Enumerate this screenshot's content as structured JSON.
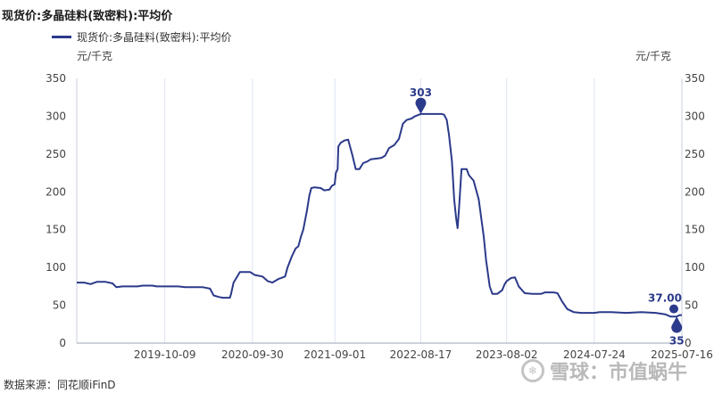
{
  "header": {
    "title": "现货价:多晶硅料(致密料):平均价",
    "legend_label": "现货价:多晶硅料(致密料):平均价",
    "unit_left": "元/千克",
    "unit_right": "元/千克"
  },
  "footer": {
    "source": "数据来源：同花顺iFinD",
    "watermark_text": "雪球：市值蜗牛"
  },
  "chart_data": {
    "type": "line",
    "series": [
      {
        "name": "现货价:多晶硅料(致密料):平均价",
        "color": "#2b3a8a",
        "points": [
          [
            "2018-10-15",
            80
          ],
          [
            "2018-11-15",
            80
          ],
          [
            "2018-12-10",
            78
          ],
          [
            "2019-01-05",
            81
          ],
          [
            "2019-02-10",
            81
          ],
          [
            "2019-03-10",
            79
          ],
          [
            "2019-03-25",
            74
          ],
          [
            "2019-04-20",
            75
          ],
          [
            "2019-06-20",
            75
          ],
          [
            "2019-07-10",
            76
          ],
          [
            "2019-08-20",
            76
          ],
          [
            "2019-09-05",
            75
          ],
          [
            "2019-10-09",
            75
          ],
          [
            "2019-12-01",
            75
          ],
          [
            "2020-01-01",
            74
          ],
          [
            "2020-03-10",
            74
          ],
          [
            "2020-04-10",
            72
          ],
          [
            "2020-04-25",
            63
          ],
          [
            "2020-05-15",
            61
          ],
          [
            "2020-06-01",
            60
          ],
          [
            "2020-06-30",
            60
          ],
          [
            "2020-07-05",
            65
          ],
          [
            "2020-07-15",
            80
          ],
          [
            "2020-08-10",
            94
          ],
          [
            "2020-09-20",
            94
          ],
          [
            "2020-10-10",
            90
          ],
          [
            "2020-11-10",
            88
          ],
          [
            "2020-12-01",
            82
          ],
          [
            "2020-12-20",
            80
          ],
          [
            "2021-01-15",
            85
          ],
          [
            "2021-02-10",
            88
          ],
          [
            "2021-02-20",
            100
          ],
          [
            "2021-03-10",
            115
          ],
          [
            "2021-03-25",
            125
          ],
          [
            "2021-04-05",
            128
          ],
          [
            "2021-04-15",
            140
          ],
          [
            "2021-04-25",
            150
          ],
          [
            "2021-05-10",
            175
          ],
          [
            "2021-05-20",
            195
          ],
          [
            "2021-05-28",
            205
          ],
          [
            "2021-06-10",
            206
          ],
          [
            "2021-07-05",
            205
          ],
          [
            "2021-07-20",
            202
          ],
          [
            "2021-08-10",
            203
          ],
          [
            "2021-08-20",
            208
          ],
          [
            "2021-08-31",
            210
          ],
          [
            "2021-09-05",
            225
          ],
          [
            "2021-09-12",
            230
          ],
          [
            "2021-09-15",
            260
          ],
          [
            "2021-09-25",
            265
          ],
          [
            "2021-10-10",
            268
          ],
          [
            "2021-10-25",
            269
          ],
          [
            "2021-11-10",
            250
          ],
          [
            "2021-11-25",
            230
          ],
          [
            "2021-12-10",
            230
          ],
          [
            "2021-12-25",
            238
          ],
          [
            "2022-01-10",
            240
          ],
          [
            "2022-01-25",
            243
          ],
          [
            "2022-02-20",
            244
          ],
          [
            "2022-03-10",
            245
          ],
          [
            "2022-03-25",
            248
          ],
          [
            "2022-04-10",
            258
          ],
          [
            "2022-05-01",
            262
          ],
          [
            "2022-05-20",
            270
          ],
          [
            "2022-06-05",
            290
          ],
          [
            "2022-06-20",
            295
          ],
          [
            "2022-07-10",
            297
          ],
          [
            "2022-07-25",
            300
          ],
          [
            "2022-08-10",
            302
          ],
          [
            "2022-08-17",
            303
          ],
          [
            "2022-08-25",
            303
          ],
          [
            "2022-09-20",
            303
          ],
          [
            "2022-10-20",
            303
          ],
          [
            "2022-11-10",
            303
          ],
          [
            "2022-11-20",
            302
          ],
          [
            "2022-12-01",
            295
          ],
          [
            "2022-12-10",
            275
          ],
          [
            "2022-12-22",
            240
          ],
          [
            "2022-12-31",
            190
          ],
          [
            "2023-01-08",
            165
          ],
          [
            "2023-01-14",
            152
          ],
          [
            "2023-01-20",
            180
          ],
          [
            "2023-01-30",
            230
          ],
          [
            "2023-02-20",
            230
          ],
          [
            "2023-03-01",
            222
          ],
          [
            "2023-03-20",
            215
          ],
          [
            "2023-04-10",
            190
          ],
          [
            "2023-05-01",
            140
          ],
          [
            "2023-05-10",
            110
          ],
          [
            "2023-05-25",
            75
          ],
          [
            "2023-06-05",
            65
          ],
          [
            "2023-06-25",
            65
          ],
          [
            "2023-07-15",
            70
          ],
          [
            "2023-07-25",
            78
          ],
          [
            "2023-08-02",
            82
          ],
          [
            "2023-08-20",
            86
          ],
          [
            "2023-09-05",
            87
          ],
          [
            "2023-09-20",
            75
          ],
          [
            "2023-10-15",
            66
          ],
          [
            "2023-11-15",
            65
          ],
          [
            "2023-12-20",
            65
          ],
          [
            "2024-01-05",
            67
          ],
          [
            "2024-02-10",
            67
          ],
          [
            "2024-02-25",
            66
          ],
          [
            "2024-03-15",
            55
          ],
          [
            "2024-04-05",
            45
          ],
          [
            "2024-05-01",
            41
          ],
          [
            "2024-06-01",
            40
          ],
          [
            "2024-07-24",
            40
          ],
          [
            "2024-08-15",
            41
          ],
          [
            "2024-10-01",
            41
          ],
          [
            "2024-12-01",
            40
          ],
          [
            "2025-02-01",
            41
          ],
          [
            "2025-04-01",
            40
          ],
          [
            "2025-05-10",
            38
          ],
          [
            "2025-06-01",
            35
          ],
          [
            "2025-06-25",
            35
          ],
          [
            "2025-07-06",
            37
          ],
          [
            "2025-07-16",
            37
          ]
        ]
      }
    ],
    "x_ticks": [
      "2019-10-09",
      "2020-09-30",
      "2021-09-01",
      "2022-08-17",
      "2023-08-02",
      "2024-07-24",
      "2025-07-16"
    ],
    "xlim": [
      "2018-10-15",
      "2025-07-16"
    ],
    "ylim": [
      0,
      350
    ],
    "y_ticks": [
      0,
      50,
      100,
      150,
      200,
      250,
      300,
      350
    ],
    "secondary_y_ticks": [
      0,
      50,
      100,
      150,
      200,
      250,
      300,
      350
    ],
    "grid": "vertical",
    "annotations": [
      {
        "label": "303",
        "x": "2022-08-17",
        "y": 303,
        "type": "max-marker"
      },
      {
        "label": "35",
        "x": "2025-06-25",
        "y": 35,
        "type": "min-marker"
      },
      {
        "label": "37.00",
        "x": "2025-07-16",
        "y": 37,
        "type": "last-value"
      }
    ]
  }
}
